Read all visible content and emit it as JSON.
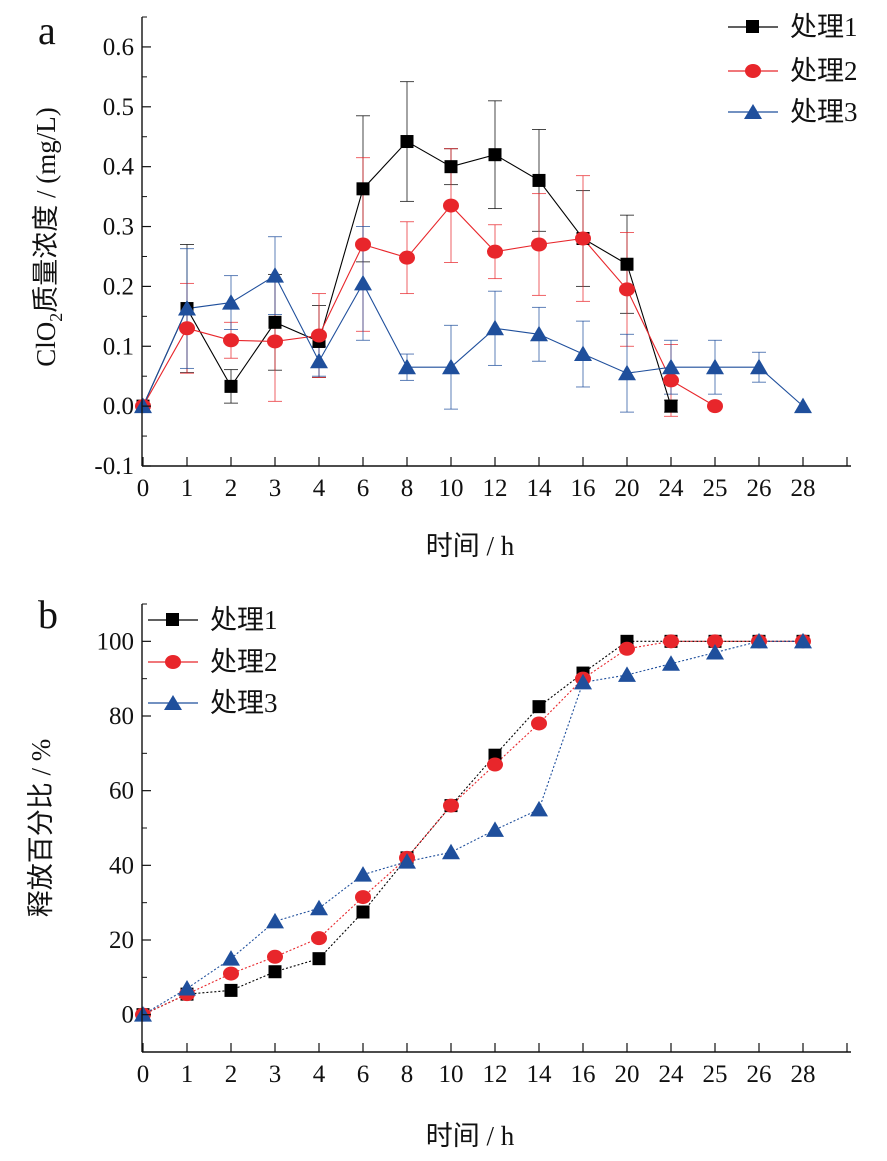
{
  "colors": {
    "series1": "#000000",
    "series2": "#e8262b",
    "series3": "#1f4f9c",
    "axis": "#111111"
  },
  "chart_data": [
    {
      "type": "line",
      "panel_label": "a",
      "categories": [
        "0",
        "1",
        "2",
        "3",
        "4",
        "6",
        "8",
        "10",
        "12",
        "14",
        "16",
        "20",
        "24",
        "25",
        "26",
        "28"
      ],
      "xlabel": "时间 / h",
      "ylabel_prefix": "ClO",
      "ylabel_sub": "2",
      "ylabel_suffix": "质量浓度 / (mg/L)",
      "ylim": [
        -0.1,
        0.65
      ],
      "yticks": [
        "-0.1",
        "0.0",
        "0.1",
        "0.2",
        "0.3",
        "0.4",
        "0.5",
        "0.6"
      ],
      "legend_position": "top-right",
      "error_bars": true,
      "series": [
        {
          "name": "处理1",
          "marker": "square",
          "values": [
            0.0,
            0.163,
            0.033,
            0.14,
            0.108,
            0.363,
            0.442,
            0.4,
            0.42,
            0.377,
            0.28,
            0.237,
            0.0,
            null,
            null,
            null
          ],
          "errors": [
            0.0,
            0.107,
            0.028,
            0.08,
            0.06,
            0.122,
            0.1,
            0.03,
            0.09,
            0.085,
            0.08,
            0.082,
            0.01,
            null,
            null,
            null
          ]
        },
        {
          "name": "处理2",
          "marker": "circle",
          "values": [
            0.0,
            0.13,
            0.11,
            0.108,
            0.118,
            0.27,
            0.248,
            0.335,
            0.258,
            0.27,
            0.28,
            0.195,
            0.043,
            0.0,
            null,
            null
          ],
          "errors": [
            0.0,
            0.075,
            0.03,
            0.1,
            0.07,
            0.145,
            0.06,
            0.095,
            0.045,
            0.085,
            0.105,
            0.095,
            0.06,
            0.0,
            null,
            null
          ]
        },
        {
          "name": "处理3",
          "marker": "triangle",
          "values": [
            0.0,
            0.163,
            0.173,
            0.218,
            0.075,
            0.205,
            0.065,
            0.065,
            0.13,
            0.12,
            0.087,
            0.055,
            0.065,
            0.065,
            0.065,
            0.0
          ],
          "errors": [
            0.0,
            0.1,
            0.045,
            0.065,
            0.025,
            0.095,
            0.022,
            0.07,
            0.062,
            0.045,
            0.055,
            0.065,
            0.045,
            0.045,
            0.025,
            0.0
          ]
        }
      ]
    },
    {
      "type": "line",
      "panel_label": "b",
      "categories": [
        "0",
        "1",
        "2",
        "3",
        "4",
        "6",
        "8",
        "10",
        "12",
        "14",
        "16",
        "20",
        "24",
        "25",
        "26",
        "28"
      ],
      "xlabel": "时间 / h",
      "ylabel": "释放百分比 / %",
      "ylim": [
        -10,
        110
      ],
      "yticks": [
        "0",
        "20",
        "40",
        "60",
        "80",
        "100"
      ],
      "legend_position": "top-left",
      "series": [
        {
          "name": "处理1",
          "marker": "square",
          "values": [
            0,
            5.5,
            6.5,
            11.5,
            15,
            27.5,
            42,
            56,
            69.5,
            82.5,
            91.5,
            100,
            100,
            100,
            100,
            100
          ]
        },
        {
          "name": "处理2",
          "marker": "circle",
          "values": [
            0,
            5.5,
            11,
            15.5,
            20.5,
            31.5,
            42,
            56,
            67,
            78,
            90,
            98,
            100,
            100,
            100,
            100
          ]
        },
        {
          "name": "处理3",
          "marker": "triangle",
          "values": [
            0,
            7,
            15,
            25,
            28.5,
            37.5,
            41,
            43.5,
            49.5,
            55,
            89,
            91,
            94,
            97,
            100,
            100
          ]
        }
      ]
    }
  ]
}
